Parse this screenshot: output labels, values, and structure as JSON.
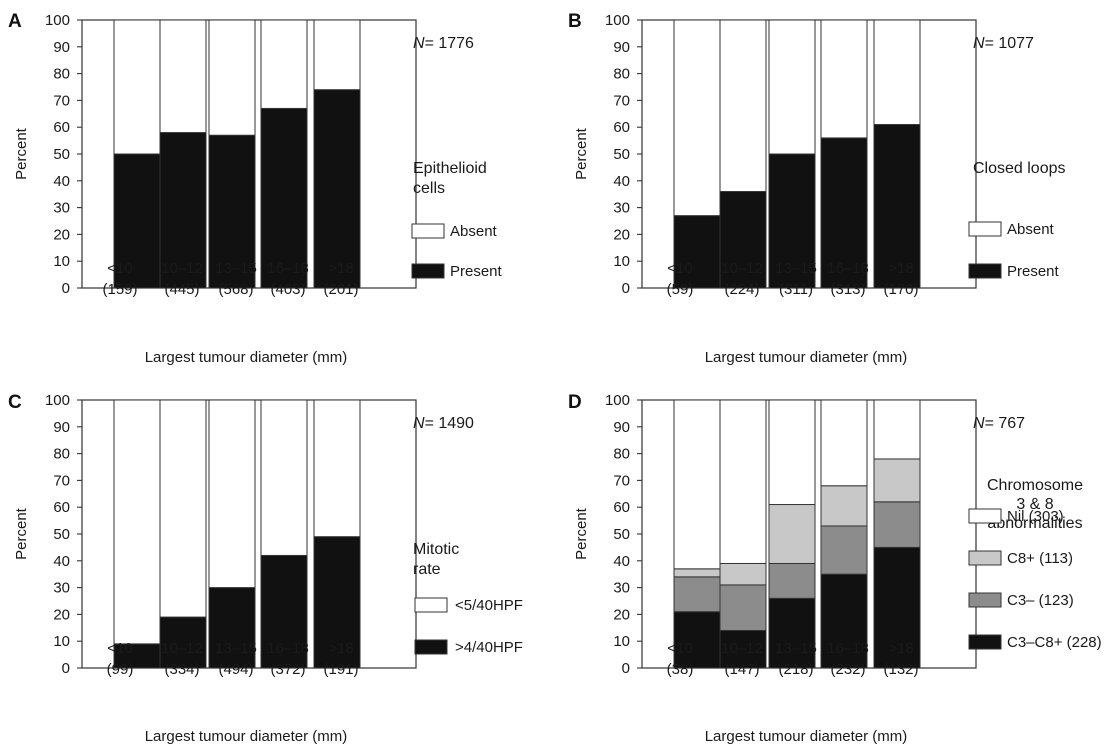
{
  "chart_data": [
    {
      "panel": "A",
      "type": "bar",
      "stacked": true,
      "ylabel": "Percent",
      "xlabel": "Largest tumour diameter (mm)",
      "ylim": [
        0,
        100
      ],
      "yticks": [
        0,
        10,
        20,
        30,
        40,
        50,
        60,
        70,
        80,
        90,
        100
      ],
      "categories": [
        "<10",
        "10–12",
        "13–15",
        "16–18",
        ">18"
      ],
      "counts": [
        "(159)",
        "(445)",
        "(568)",
        "(403)",
        "(201)"
      ],
      "n_label": "= 1776",
      "legend_title": [
        "Epithelioid",
        "cells"
      ],
      "series": [
        {
          "name": "Present",
          "color": "#111111",
          "values": [
            50,
            58,
            57,
            67,
            74
          ]
        },
        {
          "name": "Absent",
          "color": "#ffffff",
          "values": [
            50,
            42,
            43,
            33,
            26
          ]
        }
      ]
    },
    {
      "panel": "B",
      "type": "bar",
      "stacked": true,
      "ylabel": "Percent",
      "xlabel": "Largest tumour diameter (mm)",
      "ylim": [
        0,
        100
      ],
      "yticks": [
        0,
        10,
        20,
        30,
        40,
        50,
        60,
        70,
        80,
        90,
        100
      ],
      "categories": [
        "<10",
        "10–12",
        "13–15",
        "16–18",
        ">18"
      ],
      "counts": [
        "(59)",
        "(224)",
        "(311)",
        "(313)",
        "(170)"
      ],
      "n_label": "= 1077",
      "legend_title": [
        "Closed loops"
      ],
      "series": [
        {
          "name": "Present",
          "color": "#111111",
          "values": [
            27,
            36,
            50,
            56,
            61
          ]
        },
        {
          "name": "Absent",
          "color": "#ffffff",
          "values": [
            73,
            64,
            50,
            44,
            39
          ]
        }
      ]
    },
    {
      "panel": "C",
      "type": "bar",
      "stacked": true,
      "ylabel": "Percent",
      "xlabel": "Largest tumour diameter (mm)",
      "ylim": [
        0,
        100
      ],
      "yticks": [
        0,
        10,
        20,
        30,
        40,
        50,
        60,
        70,
        80,
        90,
        100
      ],
      "categories": [
        "<10",
        "10–12",
        "13–15",
        "16–18",
        ">18"
      ],
      "counts": [
        "(99)",
        "(334)",
        "(494)",
        "(372)",
        "(191)"
      ],
      "n_label": "= 1490",
      "legend_title": [
        "Mitotic",
        "rate"
      ],
      "series": [
        {
          "name": ">4/40HPF",
          "color": "#111111",
          "values": [
            9,
            19,
            30,
            42,
            49
          ]
        },
        {
          "name": "<5/40HPF",
          "color": "#ffffff",
          "values": [
            91,
            81,
            70,
            58,
            51
          ]
        }
      ]
    },
    {
      "panel": "D",
      "type": "bar",
      "stacked": true,
      "ylabel": "Percent",
      "xlabel": "Largest tumour diameter (mm)",
      "ylim": [
        0,
        100
      ],
      "yticks": [
        0,
        10,
        20,
        30,
        40,
        50,
        60,
        70,
        80,
        90,
        100
      ],
      "categories": [
        "<10",
        "10–12",
        "13–15",
        "16–18",
        ">18"
      ],
      "counts": [
        "(38)",
        "(147)",
        "(218)",
        "(232)",
        "(132)"
      ],
      "n_label": "= 767",
      "legend_title": [
        "Chromosome",
        "3 & 8",
        "abnormalities"
      ],
      "series": [
        {
          "name": "C3–C8+ (228)",
          "color": "#111111",
          "values": [
            21,
            14,
            26,
            35,
            45
          ]
        },
        {
          "name": "C3– (123)",
          "color": "#8c8c8c",
          "values": [
            13,
            17,
            13,
            18,
            17
          ]
        },
        {
          "name": "C8+ (113)",
          "color": "#c8c8c8",
          "values": [
            3,
            8,
            22,
            15,
            16
          ]
        },
        {
          "name": "Nil (303)",
          "color": "#ffffff",
          "values": [
            63,
            61,
            39,
            32,
            22
          ]
        }
      ]
    }
  ]
}
